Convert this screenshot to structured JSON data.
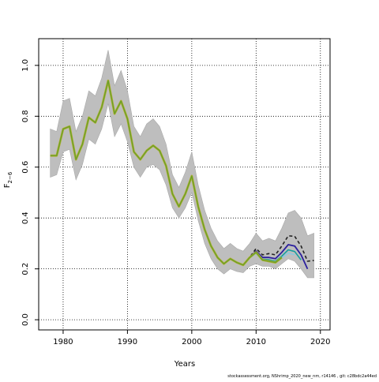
{
  "colors": {
    "band": "#bebebe",
    "band_edge": "#a8a8a8",
    "black_dashed": "#222222",
    "blue": "#2b1f9e",
    "teal": "#19a0a0",
    "lightblue": "#8ec8e0",
    "green": "#6aa02a",
    "olive": "#b5b030"
  },
  "chart_data": {
    "type": "line",
    "title": "",
    "xlabel": "Years",
    "ylabel": "F",
    "ylabel_sub": "2−6",
    "xlim": [
      1976.2,
      2021.5
    ],
    "ylim": [
      -0.04,
      1.105
    ],
    "x_ticks": [
      1980,
      1990,
      2000,
      2010,
      2020
    ],
    "y_ticks": [
      0.0,
      0.2,
      0.4,
      0.6,
      0.8,
      1.0
    ],
    "x_tick_labels": [
      "1980",
      "1990",
      "2000",
      "2010",
      "2020"
    ],
    "y_tick_labels": [
      "0.0",
      "0.2",
      "0.4",
      "0.6",
      "0.8",
      "1.0"
    ],
    "grid": "dotted",
    "legend": "none",
    "footer": "stockassessment.org,  NShrimp_2020_new_nm,  r14146  ,  git:  c28bdc2a44ed",
    "band": {
      "x": [
        1978,
        1979,
        1980,
        1981,
        1982,
        1983,
        1984,
        1985,
        1986,
        1987,
        1988,
        1989,
        1990,
        1991,
        1992,
        1993,
        1994,
        1995,
        1996,
        1997,
        1998,
        1999,
        2000,
        2001,
        2002,
        2003,
        2004,
        2005,
        2006,
        2007,
        2008,
        2009,
        2010,
        2011,
        2012,
        2013,
        2014,
        2015,
        2016,
        2017,
        2018,
        2019
      ],
      "upper": [
        0.75,
        0.74,
        0.86,
        0.87,
        0.74,
        0.8,
        0.9,
        0.88,
        0.95,
        1.06,
        0.92,
        0.98,
        0.9,
        0.76,
        0.72,
        0.77,
        0.79,
        0.76,
        0.69,
        0.57,
        0.52,
        0.58,
        0.66,
        0.53,
        0.43,
        0.36,
        0.31,
        0.28,
        0.3,
        0.28,
        0.27,
        0.3,
        0.34,
        0.31,
        0.32,
        0.31,
        0.36,
        0.42,
        0.43,
        0.4,
        0.33,
        0.34
      ],
      "lower": [
        0.56,
        0.57,
        0.66,
        0.67,
        0.55,
        0.61,
        0.71,
        0.69,
        0.75,
        0.85,
        0.72,
        0.77,
        0.7,
        0.6,
        0.56,
        0.6,
        0.61,
        0.59,
        0.53,
        0.44,
        0.4,
        0.44,
        0.5,
        0.39,
        0.3,
        0.24,
        0.2,
        0.18,
        0.2,
        0.19,
        0.185,
        0.21,
        0.22,
        0.21,
        0.21,
        0.2,
        0.22,
        0.24,
        0.23,
        0.2,
        0.165,
        0.165
      ]
    },
    "series": [
      {
        "color": "#222222",
        "dashed": true,
        "width": 1.6,
        "x": [
          1978,
          1979,
          1980,
          1981,
          1982,
          1983,
          1984,
          1985,
          1986,
          1987,
          1988,
          1989,
          1990,
          1991,
          1992,
          1993,
          1994,
          1995,
          1996,
          1997,
          1998,
          1999,
          2000,
          2001,
          2002,
          2003,
          2004,
          2005,
          2006,
          2007,
          2008,
          2009,
          2010,
          2011,
          2012,
          2013,
          2014,
          2015,
          2016,
          2017,
          2018,
          2019
        ],
        "y": [
          0.645,
          0.645,
          0.75,
          0.76,
          0.63,
          0.69,
          0.795,
          0.775,
          0.835,
          0.94,
          0.81,
          0.86,
          0.79,
          0.66,
          0.63,
          0.665,
          0.685,
          0.665,
          0.605,
          0.495,
          0.445,
          0.495,
          0.565,
          0.445,
          0.355,
          0.29,
          0.245,
          0.22,
          0.24,
          0.225,
          0.215,
          0.245,
          0.28,
          0.255,
          0.26,
          0.255,
          0.29,
          0.33,
          0.328,
          0.29,
          0.23,
          0.233
        ]
      },
      {
        "color": "#2b1f9e",
        "dashed": false,
        "width": 1.8,
        "x": [
          2007,
          2008,
          2009,
          2010,
          2011,
          2012,
          2013,
          2014,
          2015,
          2016,
          2017,
          2018
        ],
        "y": [
          0.225,
          0.215,
          0.245,
          0.27,
          0.245,
          0.245,
          0.24,
          0.265,
          0.295,
          0.29,
          0.255,
          0.2
        ]
      },
      {
        "color": "#19a0a0",
        "dashed": false,
        "width": 1.6,
        "x": [
          2007,
          2008,
          2009,
          2010,
          2011,
          2012,
          2013,
          2014,
          2015,
          2016,
          2017
        ],
        "y": [
          0.225,
          0.215,
          0.245,
          0.265,
          0.238,
          0.236,
          0.23,
          0.25,
          0.275,
          0.268,
          0.235
        ]
      },
      {
        "color": "#8ec8e0",
        "dashed": false,
        "width": 1.6,
        "x": [
          2007,
          2008,
          2009,
          2010,
          2011,
          2012,
          2013,
          2014,
          2015,
          2016
        ],
        "y": [
          0.225,
          0.215,
          0.243,
          0.26,
          0.233,
          0.23,
          0.225,
          0.243,
          0.262,
          0.255
        ]
      },
      {
        "color": "#b5b030",
        "dashed": false,
        "width": 2.8,
        "x": [
          1978,
          1979,
          1980,
          1981,
          1982,
          1983,
          1984,
          1985,
          1986,
          1987,
          1988,
          1989,
          1990,
          1991,
          1992,
          1993,
          1994,
          1995,
          1996,
          1997,
          1998,
          1999,
          2000,
          2001,
          2002,
          2003,
          2004,
          2005,
          2006,
          2007,
          2008,
          2009,
          2010,
          2011,
          2012,
          2013,
          2014
        ],
        "y": [
          0.645,
          0.645,
          0.75,
          0.76,
          0.63,
          0.69,
          0.795,
          0.775,
          0.835,
          0.94,
          0.81,
          0.86,
          0.79,
          0.66,
          0.63,
          0.665,
          0.685,
          0.665,
          0.605,
          0.495,
          0.445,
          0.495,
          0.565,
          0.445,
          0.355,
          0.29,
          0.245,
          0.22,
          0.24,
          0.225,
          0.215,
          0.245,
          0.265,
          0.235,
          0.23,
          0.225,
          0.245
        ]
      },
      {
        "color": "#6aa02a",
        "dashed": false,
        "width": 1.4,
        "x": [
          1978,
          1979,
          1980,
          1981,
          1982,
          1983,
          1984,
          1985,
          1986,
          1987,
          1988,
          1989,
          1990,
          1991,
          1992,
          1993,
          1994,
          1995,
          1996,
          1997,
          1998,
          1999,
          2000,
          2001,
          2002,
          2003,
          2004,
          2005,
          2006,
          2007,
          2008,
          2009,
          2010,
          2011,
          2012,
          2013,
          2014
        ],
        "y": [
          0.645,
          0.645,
          0.75,
          0.76,
          0.63,
          0.69,
          0.795,
          0.775,
          0.835,
          0.94,
          0.81,
          0.86,
          0.79,
          0.66,
          0.63,
          0.665,
          0.685,
          0.665,
          0.605,
          0.495,
          0.445,
          0.495,
          0.565,
          0.445,
          0.355,
          0.29,
          0.245,
          0.22,
          0.24,
          0.225,
          0.215,
          0.245,
          0.265,
          0.235,
          0.23,
          0.225,
          0.245
        ]
      }
    ]
  }
}
